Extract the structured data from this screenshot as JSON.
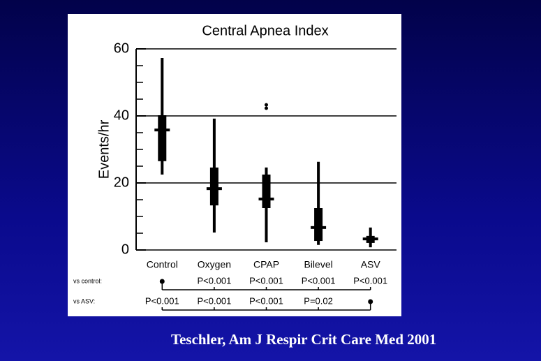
{
  "chart_data": {
    "type": "box",
    "title": "Central Apnea Index",
    "y_label": "Events/hr",
    "categories": [
      "Control",
      "Oxygen",
      "CPAP",
      "Bilevel",
      "ASV"
    ],
    "boxes": [
      {
        "whisker_low": 22.5,
        "q1": 26.5,
        "median": 35.8,
        "q3": 40.2,
        "whisker_high": 57.3,
        "outliers": []
      },
      {
        "whisker_low": 5.2,
        "q1": 13.3,
        "median": 18.3,
        "q3": 24.6,
        "whisker_high": 39.2,
        "outliers": []
      },
      {
        "whisker_low": 2.3,
        "q1": 12.5,
        "median": 15.2,
        "q3": 22.5,
        "whisker_high": 24.6,
        "outliers": [
          42.3,
          43.3
        ]
      },
      {
        "whisker_low": 1.5,
        "q1": 2.7,
        "median": 6.7,
        "q3": 12.5,
        "whisker_high": 26.3,
        "outliers": []
      },
      {
        "whisker_low": 0.8,
        "q1": 2.1,
        "median": 3.3,
        "q3": 4.2,
        "whisker_high": 6.7,
        "outliers": []
      }
    ],
    "color": "#000000",
    "ylim": [
      0,
      60
    ],
    "yticks": [
      0,
      20,
      40,
      60
    ],
    "minor_yticks": [
      5,
      10,
      15,
      25,
      30,
      35,
      45,
      50,
      55
    ],
    "grid": true,
    "comparisons": [
      {
        "label": "vs control:",
        "values": [
          null,
          "P<0.001",
          "P<0.001",
          "P<0.001",
          "P<0.001"
        ]
      },
      {
        "label": "vs ASV:",
        "values": [
          "P<0.001",
          "P<0.001",
          "P<0.001",
          "P=0.02",
          null
        ]
      }
    ]
  },
  "footer": "Teschler, Am J Respir Crit Care Med 2001"
}
